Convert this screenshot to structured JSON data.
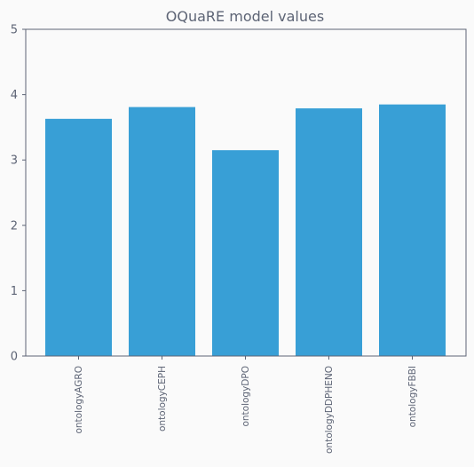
{
  "chart_data": {
    "type": "bar",
    "title": "OQuaRE model values",
    "xlabel": "",
    "ylabel": "",
    "categories": [
      "ontologyAGRO",
      "ontologyCEPH",
      "ontologyDPO",
      "ontologyDDPHENO",
      "ontologyFBBI"
    ],
    "values": [
      3.63,
      3.81,
      3.15,
      3.79,
      3.85
    ],
    "ylim": [
      0,
      5
    ],
    "yticks": [
      "0",
      "1",
      "2",
      "3",
      "4",
      "5"
    ],
    "grid": false,
    "legend": "none",
    "bar_color": "#389fd6",
    "axis_color": "#5d6475",
    "background": "#fafafa"
  }
}
